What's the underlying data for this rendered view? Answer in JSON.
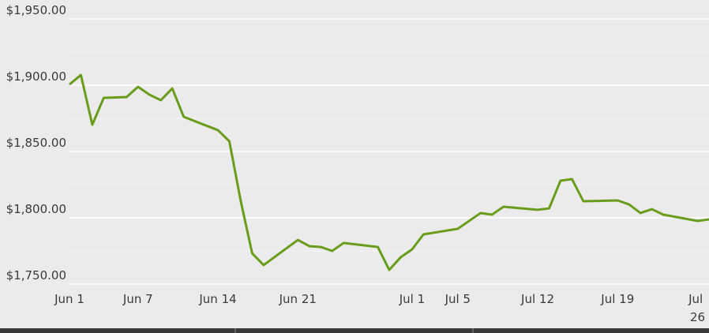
{
  "chart_data": {
    "type": "line",
    "x": [
      "Jun 1",
      "Jun 2",
      "Jun 3",
      "Jun 4",
      "Jun 6",
      "Jun 7",
      "Jun 8",
      "Jun 9",
      "Jun 10",
      "Jun 11",
      "Jun 14",
      "Jun 15",
      "Jun 16",
      "Jun 17",
      "Jun 18",
      "Jun 21",
      "Jun 22",
      "Jun 23",
      "Jun 24",
      "Jun 25",
      "Jun 28",
      "Jun 29",
      "Jun 30",
      "Jul 1",
      "Jul 2",
      "Jul 5",
      "Jul 7",
      "Jul 8",
      "Jul 9",
      "Jul 12",
      "Jul 13",
      "Jul 14",
      "Jul 15",
      "Jul 16",
      "Jul 19",
      "Jul 20",
      "Jul 21",
      "Jul 22",
      "Jul 23",
      "Jul 26",
      "Jul 27"
    ],
    "values": [
      1900.6,
      1907.7,
      1870.2,
      1890.5,
      1891.1,
      1898.8,
      1892.9,
      1888.7,
      1897.6,
      1876.2,
      1866.1,
      1857.7,
      1812.5,
      1773.2,
      1764.3,
      1783.3,
      1778.6,
      1778.0,
      1775.0,
      1781.0,
      1778.0,
      1760.7,
      1770.2,
      1776.2,
      1787.5,
      1791.7,
      1803.6,
      1802.4,
      1808.3,
      1806.0,
      1807.1,
      1828.0,
      1829.2,
      1812.5,
      1813.1,
      1810.1,
      1803.6,
      1806.5,
      1802.4,
      1797.6,
      1798.8
    ],
    "color": "#6a9c1c",
    "xlim": [
      "Jun 1",
      "Jul 27"
    ],
    "xticks": [
      "Jun 1",
      "Jun 7",
      "Jun 14",
      "Jun 21",
      "Jul 1",
      "Jul 5",
      "Jul 12",
      "Jul 19",
      "Jul 26"
    ],
    "ylim": [
      1750,
      1950
    ],
    "yticks": [
      {
        "value": 1750,
        "label": "$1,750.00"
      },
      {
        "value": 1800,
        "label": "$1,800.00"
      },
      {
        "value": 1850,
        "label": "$1,850.00"
      },
      {
        "value": 1900,
        "label": "$1,900.00"
      },
      {
        "value": 1950,
        "label": "$1,950.00"
      }
    ],
    "minor_yticks": [
      1775,
      1825,
      1875,
      1925
    ],
    "grid": true
  }
}
